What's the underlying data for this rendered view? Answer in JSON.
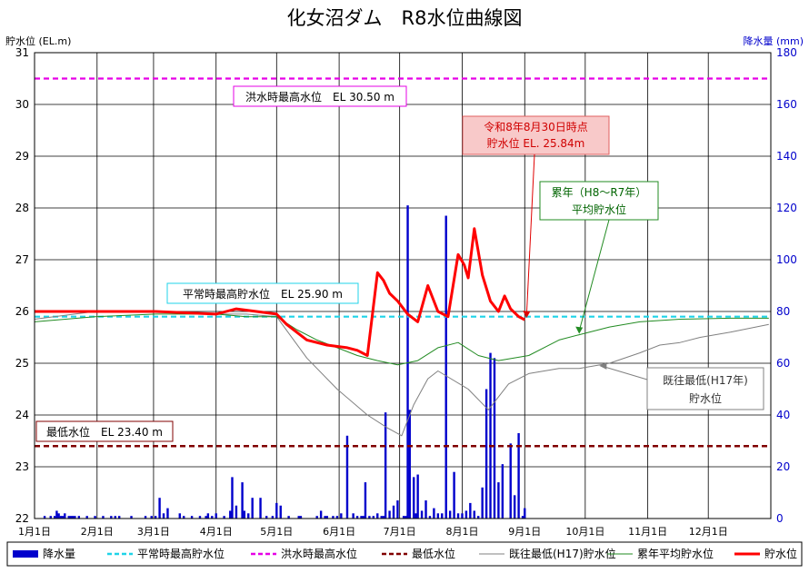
{
  "chart_data": {
    "type": "line",
    "title": "化女沼ダム　R8水位曲線図",
    "left_axis": {
      "label": "貯水位 (EL.m)",
      "min": 22,
      "max": 31,
      "ticks": [
        22,
        23,
        24,
        25,
        26,
        27,
        28,
        29,
        30,
        31
      ],
      "color": "#000000"
    },
    "right_axis": {
      "label": "降水量 (mm)",
      "min": 0,
      "max": 180,
      "ticks": [
        0,
        20,
        40,
        60,
        80,
        100,
        120,
        140,
        160,
        180
      ],
      "color": "#0000cc"
    },
    "x_axis": {
      "categories": [
        "1月1日",
        "2月1日",
        "3月1日",
        "4月1日",
        "5月1日",
        "6月1日",
        "7月1日",
        "8月1日",
        "9月1日",
        "10月1日",
        "11月1日",
        "12月1日"
      ]
    },
    "grid": true,
    "legend_position": "bottom",
    "series": [
      {
        "name": "降水量",
        "type": "bar",
        "axis": "right",
        "color": "#0000cc",
        "x": [
          5,
          8,
          10,
          11,
          12,
          13,
          14,
          15,
          17,
          18,
          19,
          20,
          22,
          26,
          30,
          34,
          38,
          40,
          42,
          48,
          55,
          58,
          60,
          62,
          64,
          66,
          72,
          74,
          78,
          82,
          85,
          86,
          88,
          90,
          94,
          97,
          98,
          100,
          103,
          104,
          106,
          108,
          112,
          115,
          118,
          120,
          122,
          126,
          131,
          132,
          140,
          142,
          144,
          145,
          148,
          150,
          152,
          155,
          158,
          160,
          162,
          163,
          164,
          166,
          168,
          170,
          172,
          173,
          174,
          176,
          178,
          180,
          183,
          184,
          185,
          186,
          188,
          189,
          190,
          192,
          194,
          196,
          198,
          200,
          202,
          204,
          206,
          208,
          210,
          212,
          214,
          216,
          218,
          220,
          222,
          224,
          226,
          228,
          230,
          232,
          236,
          238,
          240,
          242,
          243
        ],
        "y": [
          1,
          1,
          1,
          3,
          2,
          1,
          1,
          2,
          1,
          1,
          1,
          1,
          1,
          1,
          1,
          1,
          1,
          1,
          1,
          1,
          1,
          1,
          1,
          8,
          2,
          4,
          2,
          1,
          1,
          1,
          1,
          2,
          1,
          2,
          1,
          3,
          16,
          5,
          14,
          3,
          2,
          8,
          8,
          1,
          1,
          6,
          5,
          1,
          1,
          1,
          1,
          3,
          1,
          1,
          1,
          1,
          2,
          32,
          2,
          1,
          1,
          1,
          14,
          1,
          1,
          2,
          1,
          1,
          41,
          3,
          5,
          7,
          1,
          1,
          121,
          42,
          16,
          2,
          17,
          3,
          7,
          1,
          4,
          2,
          2,
          117,
          3,
          18,
          2,
          2,
          3,
          6,
          3,
          1,
          12,
          50,
          64,
          62,
          14,
          21,
          29,
          9,
          33,
          1,
          4
        ]
      },
      {
        "name": "平常時最高貯水位",
        "type": "hline",
        "axis": "left",
        "value": 25.9,
        "color": "#1fd3e8",
        "dash": "dashed"
      },
      {
        "name": "洪水時最高水位",
        "type": "hline",
        "axis": "left",
        "value": 30.5,
        "color": "#e600e6",
        "dash": "dashed"
      },
      {
        "name": "最低水位",
        "type": "hline",
        "axis": "left",
        "value": 23.4,
        "color": "#800000",
        "dash": "dashed"
      },
      {
        "name": "既往最低(H17)貯水位",
        "type": "line",
        "axis": "left",
        "color": "#808080",
        "x": [
          0,
          30,
          60,
          90,
          105,
          120,
          135,
          150,
          165,
          175,
          182,
          188,
          195,
          200,
          215,
          225,
          235,
          245,
          260,
          270,
          285,
          300,
          310,
          320,
          330,
          345,
          364
        ],
        "y": [
          25.85,
          26.0,
          26.0,
          25.95,
          25.95,
          25.9,
          25.1,
          24.5,
          24.0,
          23.75,
          23.6,
          24.2,
          24.7,
          24.85,
          24.5,
          24.1,
          24.6,
          24.8,
          24.9,
          24.9,
          25.0,
          25.2,
          25.35,
          25.4,
          25.5,
          25.6,
          25.75
        ]
      },
      {
        "name": "累年平均貯水位",
        "type": "line",
        "axis": "left",
        "color": "#228b22",
        "x": [
          0,
          30,
          60,
          90,
          105,
          120,
          130,
          140,
          150,
          160,
          170,
          180,
          190,
          200,
          210,
          220,
          230,
          245,
          260,
          270,
          285,
          300,
          320,
          345,
          364
        ],
        "y": [
          25.8,
          25.9,
          25.95,
          25.95,
          25.9,
          25.9,
          25.65,
          25.45,
          25.3,
          25.15,
          25.05,
          24.97,
          25.05,
          25.3,
          25.4,
          25.15,
          25.05,
          25.15,
          25.45,
          25.55,
          25.7,
          25.8,
          25.85,
          25.87,
          25.87
        ]
      },
      {
        "name": "貯水位",
        "type": "line",
        "axis": "left",
        "color": "#ff0000",
        "x": [
          0,
          30,
          60,
          90,
          100,
          110,
          120,
          125,
          135,
          145,
          155,
          160,
          165,
          170,
          173,
          176,
          180,
          185,
          190,
          195,
          200,
          205,
          210,
          213,
          215,
          218,
          222,
          226,
          230,
          233,
          236,
          240,
          243
        ],
        "y": [
          26.0,
          26.0,
          26.0,
          25.95,
          26.05,
          26.0,
          25.95,
          25.75,
          25.45,
          25.35,
          25.3,
          25.25,
          25.15,
          26.75,
          26.6,
          26.35,
          26.2,
          25.95,
          25.8,
          26.5,
          26.0,
          25.9,
          27.1,
          26.9,
          26.65,
          27.6,
          26.7,
          26.2,
          26.0,
          26.3,
          26.05,
          25.9,
          25.84
        ]
      }
    ],
    "annotations": [
      {
        "id": "flood",
        "lines": [
          "洪水時最高水位　EL 30.50 m"
        ]
      },
      {
        "id": "normal",
        "lines": [
          "平常時最高貯水位　EL 25.90 m"
        ]
      },
      {
        "id": "min",
        "lines": [
          "最低水位　EL 23.40 m"
        ]
      },
      {
        "id": "current",
        "lines": [
          "令和8年8月30日時点",
          "貯水位 EL. 25.84m"
        ],
        "x": 243,
        "y": 25.84
      },
      {
        "id": "avg",
        "lines": [
          "累年（H8～R7年）",
          "平均貯水位"
        ],
        "x": 270,
        "y": 25.55
      },
      {
        "id": "h17",
        "lines": [
          "既往最低(H17年)",
          "貯水位"
        ],
        "x": 280,
        "y": 24.95
      }
    ]
  }
}
